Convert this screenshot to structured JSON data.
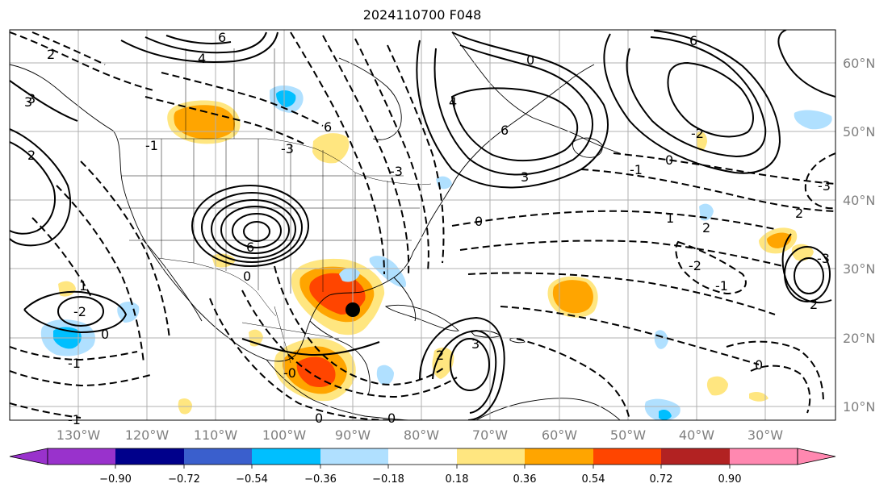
{
  "title": "2024110700 F048",
  "lon_labels": [
    "130°W",
    "120°W",
    "110°W",
    "100°W",
    "90°W",
    "80°W",
    "70°W",
    "60°W",
    "50°W",
    "40°W",
    "30°W"
  ],
  "lat_labels": [
    "60°N",
    "50°N",
    "40°N",
    "30°N",
    "20°N",
    "10°N"
  ],
  "colorbar": {
    "ticks": [
      "−0.90",
      "−0.72",
      "−0.54",
      "−0.36",
      "−0.18",
      "0.18",
      "0.36",
      "0.54",
      "0.72",
      "0.90"
    ],
    "colors": [
      "#9932cc",
      "#00008b",
      "#3a5fcd",
      "#00bfff",
      "#b0e0ff",
      "#ffffff",
      "#ffe680",
      "#ffa500",
      "#ff4500",
      "#b22222",
      "#ff88b0"
    ]
  },
  "contour_labels": [
    "2",
    "6",
    "4",
    "6",
    "6",
    "2",
    "3",
    "0",
    "3",
    "-1",
    "0",
    "6",
    "4",
    "-2",
    "-3",
    "-3",
    "6",
    "2",
    "0",
    "2",
    "-3",
    "1",
    "2",
    "-1",
    "-2",
    "-1",
    "0",
    "1",
    "2",
    "-0",
    "3",
    "0",
    "0",
    "0",
    "0",
    "-1",
    "3",
    "-1",
    "-2",
    "-3"
  ],
  "marker": "storm-center-dot"
}
